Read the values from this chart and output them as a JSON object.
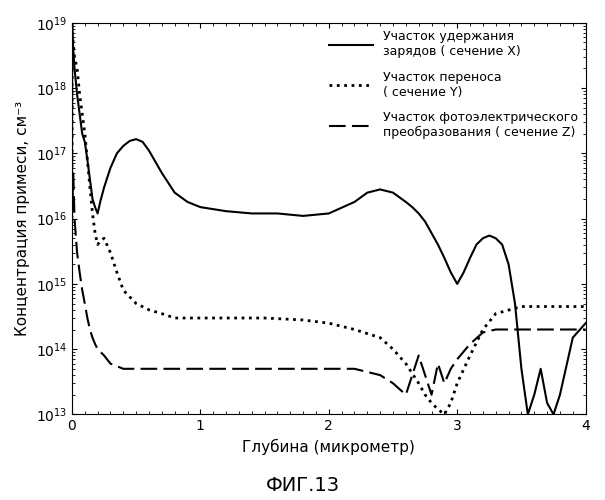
{
  "title": "ФИГ.13",
  "xlabel": "Глубина (микрометр)",
  "ylabel": "Концентрация примеси, см⁻³",
  "xlim": [
    0,
    4
  ],
  "ylim_log": [
    13,
    19
  ],
  "legend_labels": [
    "Участок удержания\nзарядов ( сечение X)",
    "Участок переноса\n( сечение Y)",
    "Участок фотоэлектрического\nпреобразования ( сечение Z)"
  ],
  "line_X": {
    "x": [
      0.0,
      0.002,
      0.005,
      0.01,
      0.02,
      0.04,
      0.06,
      0.08,
      0.1,
      0.12,
      0.14,
      0.16,
      0.18,
      0.2,
      0.22,
      0.25,
      0.3,
      0.35,
      0.4,
      0.45,
      0.5,
      0.55,
      0.6,
      0.7,
      0.8,
      0.9,
      1.0,
      1.2,
      1.4,
      1.6,
      1.8,
      2.0,
      2.2,
      2.3,
      2.4,
      2.5,
      2.6,
      2.65,
      2.7,
      2.75,
      2.8,
      2.85,
      2.9,
      2.95,
      3.0,
      3.05,
      3.1,
      3.15,
      3.2,
      3.25,
      3.3,
      3.35,
      3.4,
      3.45,
      3.5,
      3.55,
      3.6,
      3.65,
      3.7,
      3.75,
      3.8,
      3.9,
      4.0
    ],
    "y": [
      1e+16,
      1e+19,
      6e+18,
      4e+18,
      2e+18,
      8e+17,
      4e+17,
      2e+17,
      1.5e+17,
      8e+16,
      4e+16,
      2e+16,
      1.5e+16,
      1.2e+16,
      1.8e+16,
      3e+16,
      6e+16,
      1e+17,
      1.3e+17,
      1.55e+17,
      1.65e+17,
      1.5e+17,
      1.1e+17,
      5e+16,
      2.5e+16,
      1.8e+16,
      1.5e+16,
      1.3e+16,
      1.2e+16,
      1.2e+16,
      1.1e+16,
      1.2e+16,
      1.8e+16,
      2.5e+16,
      2.8e+16,
      2.5e+16,
      1.8e+16,
      1.5e+16,
      1.2e+16,
      9000000000000000.0,
      6000000000000000.0,
      4000000000000000.0,
      2500000000000000.0,
      1500000000000000.0,
      1000000000000000.0,
      1500000000000000.0,
      2500000000000000.0,
      4000000000000000.0,
      5000000000000000.0,
      5500000000000000.0,
      5000000000000000.0,
      4000000000000000.0,
      2000000000000000.0,
      500000000000000.0,
      50000000000000.0,
      10000000000000.0,
      20000000000000.0,
      50000000000000.0,
      15000000000000.0,
      10000000000000.0,
      20000000000000.0,
      150000000000000.0,
      250000000000000.0
    ]
  },
  "line_Y": {
    "x": [
      0.0,
      0.002,
      0.005,
      0.01,
      0.02,
      0.04,
      0.06,
      0.08,
      0.1,
      0.12,
      0.14,
      0.16,
      0.18,
      0.2,
      0.22,
      0.25,
      0.3,
      0.35,
      0.4,
      0.5,
      0.6,
      0.7,
      0.8,
      1.0,
      1.2,
      1.5,
      1.8,
      2.0,
      2.2,
      2.4,
      2.5,
      2.6,
      2.7,
      2.75,
      2.8,
      2.85,
      2.9,
      2.95,
      3.0,
      3.1,
      3.2,
      3.3,
      3.5,
      3.7,
      4.0
    ],
    "y": [
      1e+16,
      5e+18,
      6e+18,
      5e+18,
      3e+18,
      2e+18,
      8e+17,
      4e+17,
      2e+17,
      8e+16,
      3e+16,
      1.2e+16,
      6000000000000000.0,
      4000000000000000.0,
      4500000000000000.0,
      5000000000000000.0,
      3000000000000000.0,
      1500000000000000.0,
      800000000000000.0,
      500000000000000.0,
      400000000000000.0,
      350000000000000.0,
      300000000000000.0,
      300000000000000.0,
      300000000000000.0,
      300000000000000.0,
      280000000000000.0,
      250000000000000.0,
      200000000000000.0,
      150000000000000.0,
      100000000000000.0,
      60000000000000.0,
      30000000000000.0,
      20000000000000.0,
      15000000000000.0,
      12000000000000.0,
      10000000000000.0,
      15000000000000.0,
      30000000000000.0,
      80000000000000.0,
      200000000000000.0,
      350000000000000.0,
      450000000000000.0,
      450000000000000.0,
      450000000000000.0
    ]
  },
  "line_Z": {
    "x": [
      0.0,
      0.002,
      0.005,
      0.01,
      0.02,
      0.04,
      0.06,
      0.08,
      0.1,
      0.12,
      0.14,
      0.16,
      0.18,
      0.2,
      0.25,
      0.3,
      0.4,
      0.5,
      0.7,
      1.0,
      1.5,
      2.0,
      2.2,
      2.4,
      2.5,
      2.6,
      2.7,
      2.75,
      2.8,
      2.85,
      2.9,
      2.95,
      3.0,
      3.1,
      3.2,
      3.3,
      3.5,
      3.7,
      4.0
    ],
    "y": [
      1e+16,
      1.5e+16,
      2e+16,
      5e+16,
      1e+16,
      3000000000000000.0,
      1500000000000000.0,
      800000000000000.0,
      500000000000000.0,
      300000000000000.0,
      200000000000000.0,
      150000000000000.0,
      120000000000000.0,
      100000000000000.0,
      80000000000000.0,
      60000000000000.0,
      50000000000000.0,
      50000000000000.0,
      50000000000000.0,
      50000000000000.0,
      50000000000000.0,
      50000000000000.0,
      50000000000000.0,
      40000000000000.0,
      30000000000000.0,
      20000000000000.0,
      80000000000000.0,
      40000000000000.0,
      20000000000000.0,
      60000000000000.0,
      30000000000000.0,
      50000000000000.0,
      70000000000000.0,
      120000000000000.0,
      180000000000000.0,
      200000000000000.0,
      200000000000000.0,
      200000000000000.0,
      200000000000000.0
    ]
  }
}
